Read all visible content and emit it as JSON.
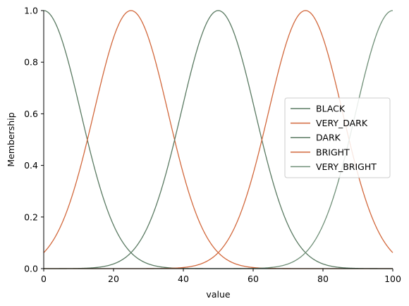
{
  "chart_data": {
    "type": "line",
    "xlabel": "value",
    "ylabel": "Membership",
    "xlim": [
      0,
      100
    ],
    "ylim": [
      0,
      1
    ],
    "x_ticks": [
      "0",
      "20",
      "40",
      "60",
      "80",
      "100"
    ],
    "y_ticks": [
      "0.0",
      "0.2",
      "0.4",
      "0.6",
      "0.8",
      "1.0"
    ],
    "legend_position": "center-right",
    "grid": false,
    "series": [
      {
        "name": "BLACK",
        "shape": "gaussian",
        "mean": 0,
        "sigma": 10.6,
        "color": "#5a7a62"
      },
      {
        "name": "VERY_DARK",
        "shape": "gaussian",
        "mean": 25,
        "sigma": 10.6,
        "color": "#d2683c"
      },
      {
        "name": "DARK",
        "shape": "gaussian",
        "mean": 50,
        "sigma": 10.6,
        "color": "#5a7a62"
      },
      {
        "name": "BRIGHT",
        "shape": "gaussian",
        "mean": 75,
        "sigma": 10.6,
        "color": "#d2683c"
      },
      {
        "name": "VERY_BRIGHT",
        "shape": "gaussian",
        "mean": 100,
        "sigma": 10.6,
        "color": "#6f8f77"
      }
    ]
  }
}
